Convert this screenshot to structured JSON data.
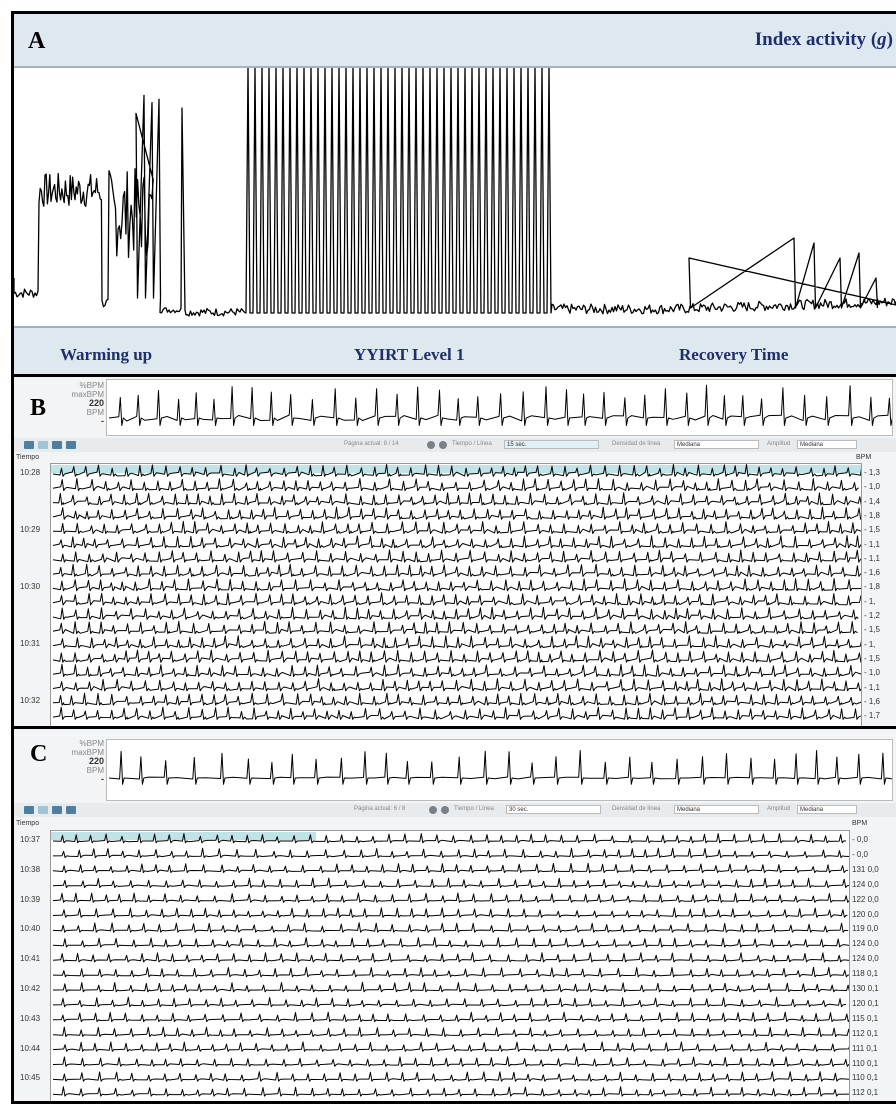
{
  "panel_a": {
    "letter": "A",
    "index_label": "Index activity (",
    "index_unit": "g",
    "index_close": ")",
    "phases": [
      "Warming up",
      "YYIRT Level 1",
      "Recovery Time"
    ]
  },
  "panel_b": {
    "letter": "B",
    "mini": {
      "line1": "%BPM",
      "line2": "maxBPM",
      "value": "220",
      "unit": "BPM",
      "dash": "-"
    },
    "toolbar": {
      "page_label": "Página actual: 8 / 14",
      "time_label": "Tiempo / Línea",
      "time_value": "15 sec.",
      "density_label": "Densidad de línea",
      "density_value": "Mediana",
      "amplitude_label": "Amplitud",
      "amplitude_value": "Mediana"
    },
    "tiempo": "Tiempo",
    "bpm_head": "BPM",
    "times": [
      "10:28",
      "10:29",
      "10:30",
      "10:31",
      "10:32"
    ],
    "rows": [
      {
        "bpm": "-",
        "val": "1,3"
      },
      {
        "bpm": "-",
        "val": "1,0"
      },
      {
        "bpm": "-",
        "val": "1,4"
      },
      {
        "bpm": "-",
        "val": "1,8"
      },
      {
        "bpm": "-",
        "val": "1,5"
      },
      {
        "bpm": "-",
        "val": "1,1"
      },
      {
        "bpm": "-",
        "val": "1,1"
      },
      {
        "bpm": "-",
        "val": "1,6"
      },
      {
        "bpm": "-",
        "val": "1,8"
      },
      {
        "bpm": "-",
        "val": "1,"
      },
      {
        "bpm": "-",
        "val": "1,2"
      },
      {
        "bpm": "-",
        "val": "1,5"
      },
      {
        "bpm": "-",
        "val": "1,"
      },
      {
        "bpm": "-",
        "val": "1,5"
      },
      {
        "bpm": "-",
        "val": "1,0"
      },
      {
        "bpm": "-",
        "val": "1,1"
      },
      {
        "bpm": "-",
        "val": "1,6"
      },
      {
        "bpm": "-",
        "val": "1,7"
      }
    ]
  },
  "panel_c": {
    "letter": "C",
    "mini": {
      "line1": "%BPM",
      "line2": "maxBPM",
      "value": "220",
      "unit": "BPM",
      "dash": "-"
    },
    "toolbar": {
      "page_label": "Página actual: 6 / 8",
      "time_label": "Tiempo / Línea",
      "time_value": "30 sec.",
      "density_label": "Densidad de línea",
      "density_value": "Mediana",
      "amplitude_label": "Amplitud",
      "amplitude_value": "Mediana"
    },
    "tiempo": "Tiempo",
    "bpm_head": "BPM",
    "times": [
      "10:37",
      "10:38",
      "10:39",
      "10:40",
      "10:41",
      "10:42",
      "10:43",
      "10:44",
      "10:45"
    ],
    "rows": [
      {
        "bpm": "-",
        "val": "0,0"
      },
      {
        "bpm": "-",
        "val": "0,0"
      },
      {
        "bpm": "131",
        "val": "0,0"
      },
      {
        "bpm": "124",
        "val": "0,0"
      },
      {
        "bpm": "122",
        "val": "0,0"
      },
      {
        "bpm": "120",
        "val": "0,0"
      },
      {
        "bpm": "119",
        "val": "0,0"
      },
      {
        "bpm": "124",
        "val": "0,0"
      },
      {
        "bpm": "124",
        "val": "0,0"
      },
      {
        "bpm": "118",
        "val": "0,1"
      },
      {
        "bpm": "130",
        "val": "0,1"
      },
      {
        "bpm": "120",
        "val": "0,1"
      },
      {
        "bpm": "115",
        "val": "0,1"
      },
      {
        "bpm": "112",
        "val": "0,1"
      },
      {
        "bpm": "111",
        "val": "0,1"
      },
      {
        "bpm": "110",
        "val": "0,1"
      },
      {
        "bpm": "110",
        "val": "0,1"
      },
      {
        "bpm": "112",
        "val": "0,1"
      }
    ]
  },
  "chart_data": [
    {
      "type": "line",
      "title": "Index activity (g)",
      "xlabel": "",
      "ylabel": "",
      "categories": [
        "Warming up",
        "YYIRT Level 1",
        "Recovery Time"
      ],
      "series": [],
      "grid": false
    },
    {
      "type": "line",
      "xlabel": "Tiempo",
      "ylabel": "BPM",
      "categories": [
        "10:28",
        "10:29",
        "10:30",
        "10:31",
        "10:32"
      ],
      "series": []
    },
    {
      "type": "line",
      "xlabel": "Tiempo",
      "ylabel": "BPM",
      "categories": [
        "10:37",
        "10:38",
        "10:39",
        "10:40",
        "10:41",
        "10:42",
        "10:43",
        "10:44",
        "10:45"
      ],
      "series": []
    }
  ],
  "colors": {
    "header_bg": "#dde8ef",
    "header_text": "#1f2f6b",
    "trace": "#000000",
    "highlight": "#bfe3e6"
  }
}
